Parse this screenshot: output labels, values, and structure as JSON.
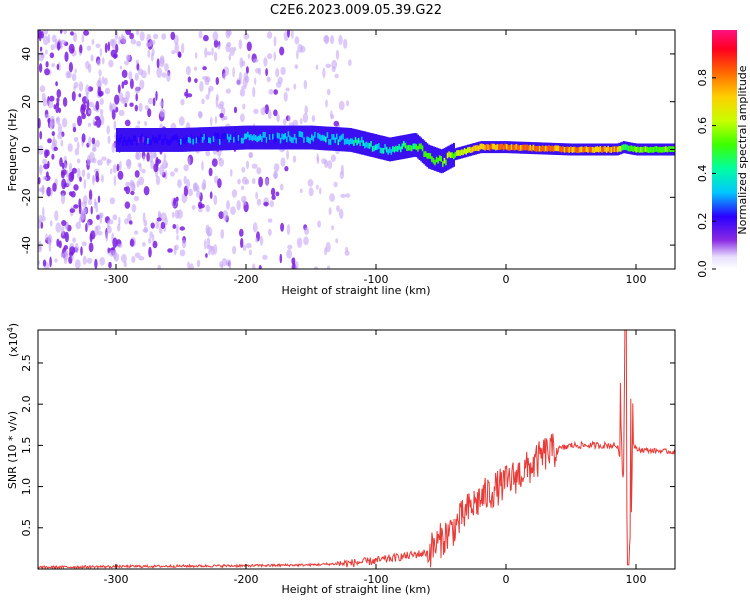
{
  "title": "C2E6.2023.009.05.39.G22",
  "chart_data": [
    {
      "type": "heatmap",
      "xlabel": "Height of straight line (km)",
      "ylabel": "Frequency (Hz)",
      "xlim": [
        -360,
        130
      ],
      "ylim": [
        -50,
        50
      ],
      "xticks": [
        -300,
        -200,
        -100,
        0,
        100
      ],
      "yticks": [
        -40,
        -20,
        0,
        20,
        40
      ],
      "colorbar": {
        "label": "Normalized spectral amplitude",
        "range": [
          0.0,
          1.0
        ],
        "ticks": [
          "0.0",
          "0.2",
          "0.4",
          "0.6",
          "0.8"
        ],
        "tick_values": [
          0.0,
          0.2,
          0.4,
          0.6,
          0.8
        ]
      },
      "ridge": {
        "x": [
          -290,
          -250,
          -200,
          -150,
          -120,
          -90,
          -70,
          -60,
          -50,
          -40,
          -20,
          0,
          50,
          85,
          90,
          100,
          130
        ],
        "y": [
          4,
          4,
          5,
          5,
          4,
          0,
          2,
          -3,
          -5,
          -2,
          1,
          1,
          0,
          0,
          1,
          0,
          0
        ],
        "amplitude": [
          0.25,
          0.3,
          0.35,
          0.35,
          0.4,
          0.45,
          0.55,
          0.6,
          0.6,
          0.65,
          0.8,
          0.85,
          0.85,
          0.8,
          0.5,
          0.6,
          0.6
        ]
      },
      "noise_region": {
        "x_range": [
          -360,
          -130
        ],
        "level": "high"
      }
    },
    {
      "type": "line",
      "xlabel": "Height of straight line (km)",
      "ylabel": "SNR (10 * v/v)",
      "yscale_label": "(x10",
      "yscale_exp": "4",
      "yscale_close": ")",
      "xlim": [
        -360,
        130
      ],
      "ylim": [
        0,
        2.9
      ],
      "xticks": [
        -300,
        -200,
        -100,
        0,
        100
      ],
      "yticks": [
        "0.5",
        "1.0",
        "1.5",
        "2.0",
        "2.5"
      ],
      "ytick_values": [
        0.5,
        1.0,
        1.5,
        2.0,
        2.5
      ],
      "series": [
        {
          "color": "#e83a36",
          "x": [
            -360,
            -300,
            -200,
            -150,
            -120,
            -100,
            -80,
            -60,
            -40,
            -30,
            -20,
            -10,
            0,
            10,
            20,
            30,
            50,
            70,
            85,
            90,
            92,
            94,
            96,
            100,
            130
          ],
          "y": [
            0.02,
            0.03,
            0.04,
            0.05,
            0.07,
            0.1,
            0.15,
            0.2,
            0.5,
            0.7,
            0.85,
            0.95,
            1.05,
            1.15,
            1.25,
            1.4,
            1.5,
            1.5,
            1.5,
            1.3,
            2.9,
            0.05,
            1.6,
            1.45,
            1.42
          ]
        }
      ]
    }
  ],
  "colors": {
    "axis": "#000000",
    "line": "#e83a36"
  }
}
